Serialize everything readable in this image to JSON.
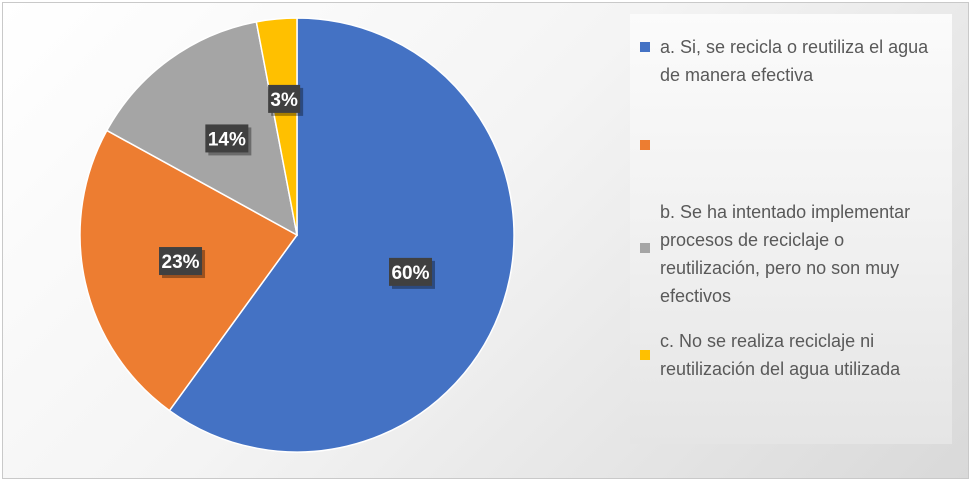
{
  "chart_data": {
    "type": "pie",
    "title": "",
    "slices": [
      {
        "label": "a. Si, se recicla o reutiliza el agua de manera efectiva",
        "value": 60,
        "display": "60%",
        "color": "#4472C4"
      },
      {
        "label": "",
        "value": 23,
        "display": "23%",
        "color": "#ED7D31"
      },
      {
        "label": "b. Se ha intentado implementar procesos de reciclaje o reutilización, pero no son muy efectivos",
        "value": 14,
        "display": "14%",
        "color": "#A5A5A5"
      },
      {
        "label": "c. No se realiza reciclaje ni reutilización del agua utilizada",
        "value": 3,
        "display": "3%",
        "color": "#FFC000"
      }
    ],
    "legend_position": "right"
  }
}
